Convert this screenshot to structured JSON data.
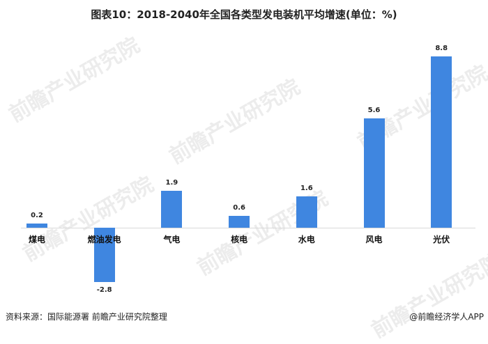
{
  "title": "图表10：2018-2040年全国各类型发电装机平均增速(单位：%)",
  "source": "资料来源：国际能源署 前瞻产业研究院整理",
  "credit": "@前瞻经济学人APP",
  "watermark": "前瞻产业研究院",
  "colors": {
    "bar": "#3f86e0",
    "axis": "#d9d9d9"
  },
  "chart_data": {
    "type": "bar",
    "title": "图表10：2018-2040年全国各类型发电装机平均增速(单位：%)",
    "xlabel": "",
    "ylabel": "",
    "categories": [
      "煤电",
      "燃油发电",
      "气电",
      "核电",
      "水电",
      "风电",
      "光伏"
    ],
    "values": [
      0.2,
      -2.8,
      1.9,
      0.6,
      1.6,
      5.6,
      8.8
    ],
    "value_labels": [
      "0.2",
      "-2.8",
      "1.9",
      "0.6",
      "1.6",
      "5.6",
      "8.8"
    ],
    "ylim": [
      -2.8,
      8.8
    ],
    "grid": false,
    "legend": null
  }
}
